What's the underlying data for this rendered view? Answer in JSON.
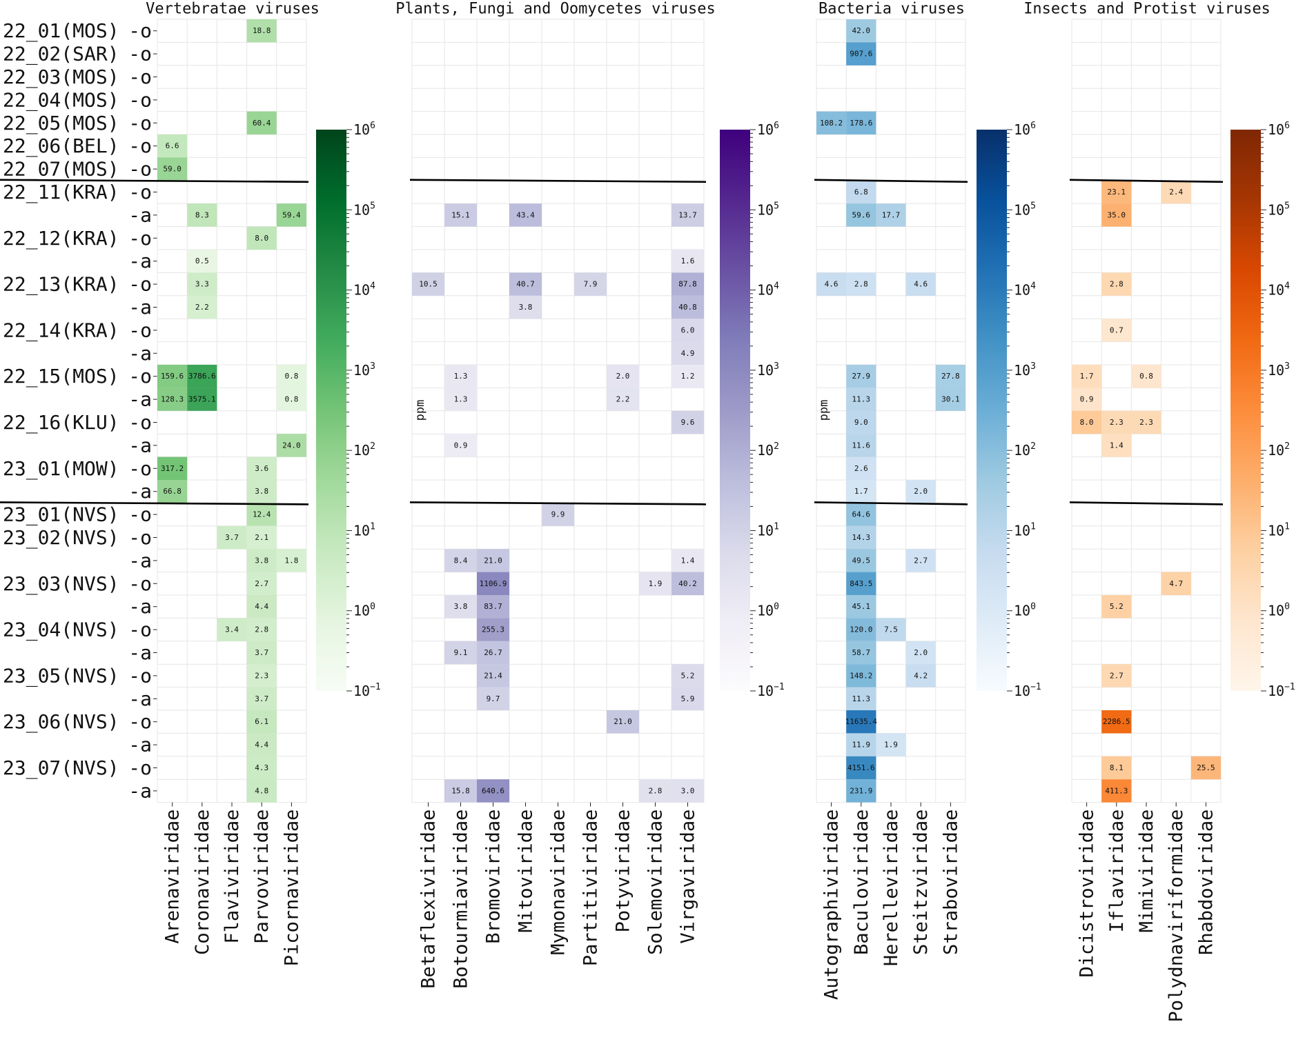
{
  "figure": {
    "row_groups": [
      {
        "name": "22_01(MOS)",
        "suffixes": [
          "-o"
        ]
      },
      {
        "name": "22_02(SAR)",
        "suffixes": [
          "-o"
        ]
      },
      {
        "name": "22_03(MOS)",
        "suffixes": [
          "-o"
        ]
      },
      {
        "name": "22_04(MOS)",
        "suffixes": [
          "-o"
        ]
      },
      {
        "name": "22_05(MOS)",
        "suffixes": [
          "-o"
        ]
      },
      {
        "name": "22_06(BEL)",
        "suffixes": [
          "-o"
        ]
      },
      {
        "name": "22_07(MOS)",
        "suffixes": [
          "-o"
        ]
      },
      {
        "name": "22_11(KRA)",
        "suffixes": [
          "-o",
          "-a"
        ]
      },
      {
        "name": "22_12(KRA)",
        "suffixes": [
          "-o",
          "-a"
        ]
      },
      {
        "name": "22_13(KRA)",
        "suffixes": [
          "-o",
          "-a"
        ]
      },
      {
        "name": "22_14(KRA)",
        "suffixes": [
          "-o",
          "-a"
        ]
      },
      {
        "name": "22_15(MOS)",
        "suffixes": [
          "-o",
          "-a"
        ]
      },
      {
        "name": "22_16(KLU)",
        "suffixes": [
          "-o",
          "-a"
        ]
      },
      {
        "name": "23_01(MOW)",
        "suffixes": [
          "-o",
          "-a"
        ]
      },
      {
        "name": "23_01(NVS)",
        "suffixes": [
          "-o"
        ]
      },
      {
        "name": "23_02(NVS)",
        "suffixes": [
          "-o",
          "-a"
        ]
      },
      {
        "name": "23_03(NVS)",
        "suffixes": [
          "-o",
          "-a"
        ]
      },
      {
        "name": "23_04(NVS)",
        "suffixes": [
          "-o",
          "-a"
        ]
      },
      {
        "name": "23_05(NVS)",
        "suffixes": [
          "-o",
          "-a"
        ]
      },
      {
        "name": "23_06(NVS)",
        "suffixes": [
          "-o",
          "-a"
        ]
      },
      {
        "name": "23_07(NVS)",
        "suffixes": [
          "-o",
          "-a"
        ]
      }
    ],
    "separators_after_row": [
      6,
      20
    ],
    "colorbar": {
      "label": "ppm",
      "tick_base": "10",
      "tick_exponents": [
        "−1",
        "0",
        "1",
        "2",
        "3",
        "4",
        "5",
        "6"
      ]
    }
  },
  "chart_data": [
    {
      "type": "heatmap",
      "title": "Vertebratae viruses",
      "scale": "log",
      "vmin": 0.1,
      "vmax": 1000000,
      "colormap": "Greens",
      "colors": [
        "#f7fcf5",
        "#e5f5e0",
        "#c7e9c0",
        "#a1d99b",
        "#74c476",
        "#41ab5d",
        "#238b45",
        "#006d2c",
        "#00441b"
      ],
      "columns": [
        "Arenaviridae",
        "Coronaviridae",
        "Flaviviridae",
        "Parvoviridae",
        "Picornaviridae"
      ],
      "cells": [
        {
          "row": 0,
          "col": 3,
          "value": 18.8,
          "label": "18.8"
        },
        {
          "row": 4,
          "col": 3,
          "value": 60.4,
          "label": "60.4"
        },
        {
          "row": 5,
          "col": 0,
          "value": 6.6,
          "label": "6.6"
        },
        {
          "row": 6,
          "col": 0,
          "value": 59.0,
          "label": "59.0"
        },
        {
          "row": 8,
          "col": 1,
          "value": 8.3,
          "label": "8.3"
        },
        {
          "row": 8,
          "col": 4,
          "value": 59.4,
          "label": "59.4"
        },
        {
          "row": 9,
          "col": 3,
          "value": 8.0,
          "label": "8.0"
        },
        {
          "row": 10,
          "col": 1,
          "value": 0.5,
          "label": "0.5"
        },
        {
          "row": 11,
          "col": 1,
          "value": 3.3,
          "label": "3.3"
        },
        {
          "row": 12,
          "col": 1,
          "value": 2.2,
          "label": "2.2"
        },
        {
          "row": 15,
          "col": 0,
          "value": 159.6,
          "label": "159.6"
        },
        {
          "row": 15,
          "col": 1,
          "value": 3786.6,
          "label": "3786.6"
        },
        {
          "row": 15,
          "col": 4,
          "value": 0.8,
          "label": "0.8"
        },
        {
          "row": 16,
          "col": 0,
          "value": 128.3,
          "label": "128.3"
        },
        {
          "row": 16,
          "col": 1,
          "value": 3575.1,
          "label": "3575.1"
        },
        {
          "row": 16,
          "col": 4,
          "value": 0.8,
          "label": "0.8"
        },
        {
          "row": 18,
          "col": 4,
          "value": 24.0,
          "label": "24.0"
        },
        {
          "row": 19,
          "col": 0,
          "value": 317.2,
          "label": "317.2"
        },
        {
          "row": 19,
          "col": 3,
          "value": 3.6,
          "label": "3.6"
        },
        {
          "row": 20,
          "col": 0,
          "value": 66.8,
          "label": "66.8"
        },
        {
          "row": 20,
          "col": 3,
          "value": 3.8,
          "label": "3.8"
        },
        {
          "row": 21,
          "col": 3,
          "value": 12.4,
          "label": "12.4"
        },
        {
          "row": 22,
          "col": 2,
          "value": 3.7,
          "label": "3.7"
        },
        {
          "row": 22,
          "col": 3,
          "value": 2.1,
          "label": "2.1"
        },
        {
          "row": 23,
          "col": 3,
          "value": 3.8,
          "label": "3.8"
        },
        {
          "row": 23,
          "col": 4,
          "value": 1.8,
          "label": "1.8"
        },
        {
          "row": 24,
          "col": 3,
          "value": 2.7,
          "label": "2.7"
        },
        {
          "row": 25,
          "col": 3,
          "value": 4.4,
          "label": "4.4"
        },
        {
          "row": 26,
          "col": 2,
          "value": 3.4,
          "label": "3.4"
        },
        {
          "row": 26,
          "col": 3,
          "value": 2.8,
          "label": "2.8"
        },
        {
          "row": 27,
          "col": 3,
          "value": 3.7,
          "label": "3.7"
        },
        {
          "row": 28,
          "col": 3,
          "value": 2.3,
          "label": "2.3"
        },
        {
          "row": 29,
          "col": 3,
          "value": 3.7,
          "label": "3.7"
        },
        {
          "row": 30,
          "col": 3,
          "value": 6.1,
          "label": "6.1"
        },
        {
          "row": 31,
          "col": 3,
          "value": 4.4,
          "label": "4.4"
        },
        {
          "row": 32,
          "col": 3,
          "value": 4.3,
          "label": "4.3"
        },
        {
          "row": 33,
          "col": 3,
          "value": 4.8,
          "label": "4.8"
        }
      ]
    },
    {
      "type": "heatmap",
      "title": "Plants, Fungi and Oomycetes viruses",
      "scale": "log",
      "vmin": 0.1,
      "vmax": 1000000,
      "colormap": "Purples",
      "colors": [
        "#fcfbfd",
        "#efedf5",
        "#dadaeb",
        "#bcbddc",
        "#9e9ac8",
        "#807dba",
        "#6a51a3",
        "#54278f",
        "#3f007d"
      ],
      "columns": [
        "Betaflexiviridae",
        "Botourmiaviridae",
        "Bromoviridae",
        "Mitoviridae",
        "Mymonaviridae",
        "Partitiviridae",
        "Potyviridae",
        "Solemoviridae",
        "Virgaviridae"
      ],
      "cells": [
        {
          "row": 8,
          "col": 1,
          "value": 15.1,
          "label": "15.1"
        },
        {
          "row": 8,
          "col": 3,
          "value": 43.4,
          "label": "43.4"
        },
        {
          "row": 8,
          "col": 8,
          "value": 13.7,
          "label": "13.7"
        },
        {
          "row": 10,
          "col": 8,
          "value": 1.6,
          "label": "1.6"
        },
        {
          "row": 11,
          "col": 0,
          "value": 10.5,
          "label": "10.5"
        },
        {
          "row": 11,
          "col": 3,
          "value": 40.7,
          "label": "40.7"
        },
        {
          "row": 11,
          "col": 5,
          "value": 7.9,
          "label": "7.9"
        },
        {
          "row": 11,
          "col": 8,
          "value": 87.8,
          "label": "87.8"
        },
        {
          "row": 12,
          "col": 3,
          "value": 3.8,
          "label": "3.8"
        },
        {
          "row": 12,
          "col": 8,
          "value": 40.8,
          "label": "40.8"
        },
        {
          "row": 13,
          "col": 8,
          "value": 6.0,
          "label": "6.0"
        },
        {
          "row": 14,
          "col": 8,
          "value": 4.9,
          "label": "4.9"
        },
        {
          "row": 15,
          "col": 1,
          "value": 1.3,
          "label": "1.3"
        },
        {
          "row": 15,
          "col": 6,
          "value": 2.0,
          "label": "2.0"
        },
        {
          "row": 15,
          "col": 8,
          "value": 1.2,
          "label": "1.2"
        },
        {
          "row": 16,
          "col": 1,
          "value": 1.3,
          "label": "1.3"
        },
        {
          "row": 16,
          "col": 6,
          "value": 2.2,
          "label": "2.2"
        },
        {
          "row": 17,
          "col": 8,
          "value": 9.6,
          "label": "9.6"
        },
        {
          "row": 18,
          "col": 1,
          "value": 0.9,
          "label": "0.9"
        },
        {
          "row": 21,
          "col": 4,
          "value": 9.9,
          "label": "9.9"
        },
        {
          "row": 23,
          "col": 1,
          "value": 8.4,
          "label": "8.4"
        },
        {
          "row": 23,
          "col": 2,
          "value": 21.0,
          "label": "21.0"
        },
        {
          "row": 23,
          "col": 8,
          "value": 1.4,
          "label": "1.4"
        },
        {
          "row": 24,
          "col": 2,
          "value": 1106.9,
          "label": "1106.9"
        },
        {
          "row": 24,
          "col": 7,
          "value": 1.9,
          "label": "1.9"
        },
        {
          "row": 24,
          "col": 8,
          "value": 40.2,
          "label": "40.2"
        },
        {
          "row": 25,
          "col": 1,
          "value": 3.8,
          "label": "3.8"
        },
        {
          "row": 25,
          "col": 2,
          "value": 83.7,
          "label": "83.7"
        },
        {
          "row": 26,
          "col": 2,
          "value": 255.3,
          "label": "255.3"
        },
        {
          "row": 27,
          "col": 1,
          "value": 9.1,
          "label": "9.1"
        },
        {
          "row": 27,
          "col": 2,
          "value": 26.7,
          "label": "26.7"
        },
        {
          "row": 28,
          "col": 2,
          "value": 21.4,
          "label": "21.4"
        },
        {
          "row": 28,
          "col": 8,
          "value": 5.2,
          "label": "5.2"
        },
        {
          "row": 29,
          "col": 2,
          "value": 9.7,
          "label": "9.7"
        },
        {
          "row": 29,
          "col": 8,
          "value": 5.9,
          "label": "5.9"
        },
        {
          "row": 30,
          "col": 6,
          "value": 21.0,
          "label": "21.0"
        },
        {
          "row": 33,
          "col": 1,
          "value": 15.8,
          "label": "15.8"
        },
        {
          "row": 33,
          "col": 2,
          "value": 640.6,
          "label": "640.6"
        },
        {
          "row": 33,
          "col": 7,
          "value": 2.8,
          "label": "2.8"
        },
        {
          "row": 33,
          "col": 8,
          "value": 3.0,
          "label": "3.0"
        }
      ]
    },
    {
      "type": "heatmap",
      "title": "Bacteria viruses",
      "scale": "log",
      "vmin": 0.1,
      "vmax": 1000000,
      "colormap": "Blues",
      "colors": [
        "#f7fbff",
        "#deebf7",
        "#c6dbef",
        "#9ecae1",
        "#6baed6",
        "#4292c6",
        "#2171b5",
        "#08519c",
        "#08306b"
      ],
      "columns": [
        "Autographiviridae",
        "Baculoviridae",
        "Herelleviridae",
        "Steitzviridae",
        "Straboviridae"
      ],
      "cells": [
        {
          "row": 0,
          "col": 1,
          "value": 42.0,
          "label": "42.0"
        },
        {
          "row": 1,
          "col": 1,
          "value": 907.6,
          "label": "907.6"
        },
        {
          "row": 4,
          "col": 0,
          "value": 108.2,
          "label": "108.2"
        },
        {
          "row": 4,
          "col": 1,
          "value": 178.6,
          "label": "178.6"
        },
        {
          "row": 7,
          "col": 1,
          "value": 6.8,
          "label": "6.8"
        },
        {
          "row": 8,
          "col": 1,
          "value": 59.6,
          "label": "59.6"
        },
        {
          "row": 8,
          "col": 2,
          "value": 17.7,
          "label": "17.7"
        },
        {
          "row": 11,
          "col": 0,
          "value": 4.6,
          "label": "4.6"
        },
        {
          "row": 11,
          "col": 1,
          "value": 2.8,
          "label": "2.8"
        },
        {
          "row": 11,
          "col": 3,
          "value": 4.6,
          "label": "4.6"
        },
        {
          "row": 15,
          "col": 1,
          "value": 27.9,
          "label": "27.9"
        },
        {
          "row": 15,
          "col": 4,
          "value": 27.8,
          "label": "27.8"
        },
        {
          "row": 16,
          "col": 1,
          "value": 11.3,
          "label": "11.3"
        },
        {
          "row": 16,
          "col": 4,
          "value": 30.1,
          "label": "30.1"
        },
        {
          "row": 17,
          "col": 1,
          "value": 9.0,
          "label": "9.0"
        },
        {
          "row": 18,
          "col": 1,
          "value": 11.6,
          "label": "11.6"
        },
        {
          "row": 19,
          "col": 1,
          "value": 2.6,
          "label": "2.6"
        },
        {
          "row": 20,
          "col": 1,
          "value": 1.7,
          "label": "1.7"
        },
        {
          "row": 20,
          "col": 3,
          "value": 2.0,
          "label": "2.0"
        },
        {
          "row": 21,
          "col": 1,
          "value": 64.6,
          "label": "64.6"
        },
        {
          "row": 22,
          "col": 1,
          "value": 14.3,
          "label": "14.3"
        },
        {
          "row": 23,
          "col": 1,
          "value": 49.5,
          "label": "49.5"
        },
        {
          "row": 23,
          "col": 3,
          "value": 2.7,
          "label": "2.7"
        },
        {
          "row": 24,
          "col": 1,
          "value": 843.5,
          "label": "843.5"
        },
        {
          "row": 25,
          "col": 1,
          "value": 45.1,
          "label": "45.1"
        },
        {
          "row": 26,
          "col": 1,
          "value": 120.0,
          "label": "120.0"
        },
        {
          "row": 26,
          "col": 2,
          "value": 7.5,
          "label": "7.5"
        },
        {
          "row": 27,
          "col": 1,
          "value": 58.7,
          "label": "58.7"
        },
        {
          "row": 27,
          "col": 3,
          "value": 2.0,
          "label": "2.0"
        },
        {
          "row": 28,
          "col": 1,
          "value": 148.2,
          "label": "148.2"
        },
        {
          "row": 28,
          "col": 3,
          "value": 4.2,
          "label": "4.2"
        },
        {
          "row": 29,
          "col": 1,
          "value": 11.3,
          "label": "11.3"
        },
        {
          "row": 30,
          "col": 1,
          "value": 11635.4,
          "label": "11635.4"
        },
        {
          "row": 31,
          "col": 1,
          "value": 11.9,
          "label": "11.9"
        },
        {
          "row": 31,
          "col": 2,
          "value": 1.9,
          "label": "1.9"
        },
        {
          "row": 32,
          "col": 1,
          "value": 4151.6,
          "label": "4151.6"
        },
        {
          "row": 33,
          "col": 1,
          "value": 231.9,
          "label": "231.9"
        }
      ]
    },
    {
      "type": "heatmap",
      "title": "Insects and Protist viruses",
      "scale": "log",
      "vmin": 0.1,
      "vmax": 1000000,
      "colormap": "Oranges",
      "colors": [
        "#fff5eb",
        "#fee6ce",
        "#fdd0a2",
        "#fdae6b",
        "#fd8d3c",
        "#f16913",
        "#d94801",
        "#a63603",
        "#7f2704"
      ],
      "columns": [
        "Dicistroviridae",
        "Iflaviridae",
        "Mimiviridae",
        "Polydnaviriformidae",
        "Rhabdoviridae"
      ],
      "cells": [
        {
          "row": 7,
          "col": 1,
          "value": 23.1,
          "label": "23.1"
        },
        {
          "row": 7,
          "col": 3,
          "value": 2.4,
          "label": "2.4"
        },
        {
          "row": 8,
          "col": 1,
          "value": 35.0,
          "label": "35.0"
        },
        {
          "row": 11,
          "col": 1,
          "value": 2.8,
          "label": "2.8"
        },
        {
          "row": 13,
          "col": 1,
          "value": 0.7,
          "label": "0.7"
        },
        {
          "row": 15,
          "col": 0,
          "value": 1.7,
          "label": "1.7"
        },
        {
          "row": 15,
          "col": 2,
          "value": 0.8,
          "label": "0.8"
        },
        {
          "row": 16,
          "col": 0,
          "value": 0.9,
          "label": "0.9"
        },
        {
          "row": 17,
          "col": 0,
          "value": 8.0,
          "label": "8.0"
        },
        {
          "row": 17,
          "col": 1,
          "value": 2.3,
          "label": "2.3"
        },
        {
          "row": 17,
          "col": 2,
          "value": 2.3,
          "label": "2.3"
        },
        {
          "row": 18,
          "col": 1,
          "value": 1.4,
          "label": "1.4"
        },
        {
          "row": 24,
          "col": 3,
          "value": 4.7,
          "label": "4.7"
        },
        {
          "row": 25,
          "col": 1,
          "value": 5.2,
          "label": "5.2"
        },
        {
          "row": 28,
          "col": 1,
          "value": 2.7,
          "label": "2.7"
        },
        {
          "row": 30,
          "col": 1,
          "value": 2286.5,
          "label": "2286.5"
        },
        {
          "row": 32,
          "col": 1,
          "value": 8.1,
          "label": "8.1"
        },
        {
          "row": 32,
          "col": 4,
          "value": 25.5,
          "label": "25.5"
        },
        {
          "row": 33,
          "col": 1,
          "value": 411.3,
          "label": "411.3"
        }
      ]
    }
  ]
}
